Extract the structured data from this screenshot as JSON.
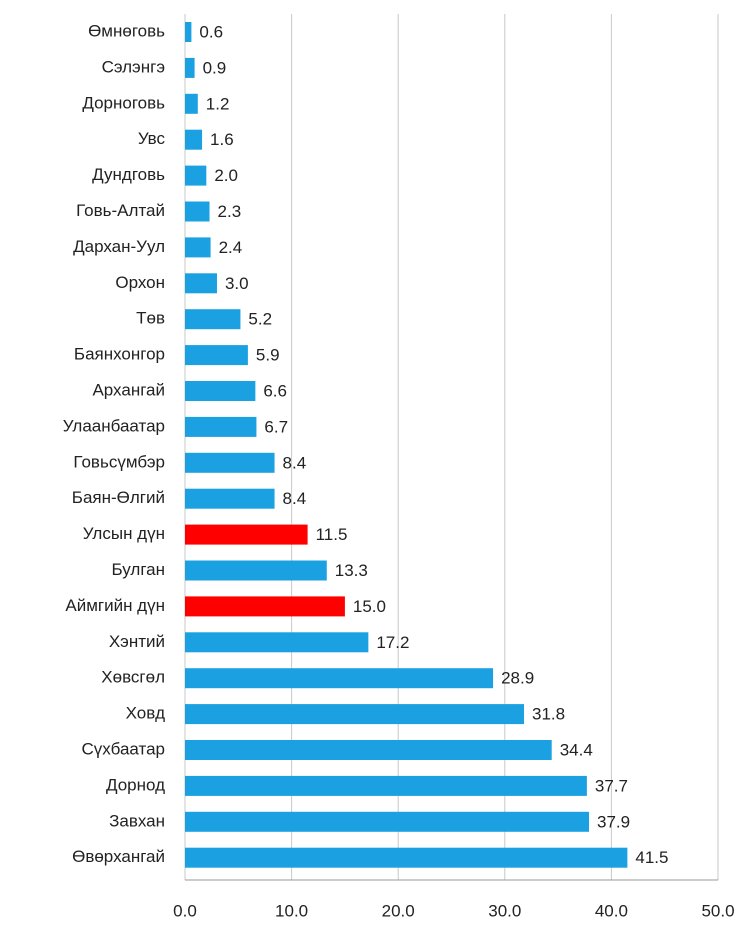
{
  "chart_data": {
    "type": "barh",
    "categories": [
      "Өмнөговь",
      "Сэлэнгэ",
      "Дорноговь",
      "Увс",
      "Дундговь",
      "Говь-Алтай",
      "Дархан-Уул",
      "Орхон",
      "Төв",
      "Баянхонгор",
      "Архангай",
      "Улаанбаатар",
      "Говьсүмбэр",
      "Баян-Өлгий",
      "Улсын дүн",
      "Булган",
      "Аймгийн дүн",
      "Хэнтий",
      "Хөвсгөл",
      "Ховд",
      "Сүхбаатар",
      "Дорнод",
      "Завхан",
      "Өвөрхангай"
    ],
    "values": [
      0.6,
      0.9,
      1.2,
      1.6,
      2.0,
      2.3,
      2.4,
      3.0,
      5.2,
      5.9,
      6.6,
      6.7,
      8.4,
      8.4,
      11.5,
      13.3,
      15.0,
      17.2,
      28.9,
      31.8,
      34.4,
      37.7,
      37.9,
      41.5
    ],
    "value_labels": [
      "0.6",
      "0.9",
      "1.2",
      "1.6",
      "2.0",
      "2.3",
      "2.4",
      "3.0",
      "5.2",
      "5.9",
      "6.6",
      "6.7",
      "8.4",
      "8.4",
      "11.5",
      "13.3",
      "15.0",
      "17.2",
      "28.9",
      "31.8",
      "34.4",
      "37.7",
      "37.9",
      "41.5"
    ],
    "colors": [
      "#1ba1e2",
      "#1ba1e2",
      "#1ba1e2",
      "#1ba1e2",
      "#1ba1e2",
      "#1ba1e2",
      "#1ba1e2",
      "#1ba1e2",
      "#1ba1e2",
      "#1ba1e2",
      "#1ba1e2",
      "#1ba1e2",
      "#1ba1e2",
      "#1ba1e2",
      "#ff0000",
      "#1ba1e2",
      "#ff0000",
      "#1ba1e2",
      "#1ba1e2",
      "#1ba1e2",
      "#1ba1e2",
      "#1ba1e2",
      "#1ba1e2",
      "#1ba1e2"
    ],
    "xlim": [
      0,
      50
    ],
    "xticks": [
      {
        "value": 0,
        "label": "0.0"
      },
      {
        "value": 10,
        "label": "10.0"
      },
      {
        "value": 20,
        "label": "20.0"
      },
      {
        "value": 30,
        "label": "30.0"
      },
      {
        "value": 40,
        "label": "40.0"
      },
      {
        "value": 50,
        "label": "50.0"
      }
    ],
    "grid": true
  }
}
